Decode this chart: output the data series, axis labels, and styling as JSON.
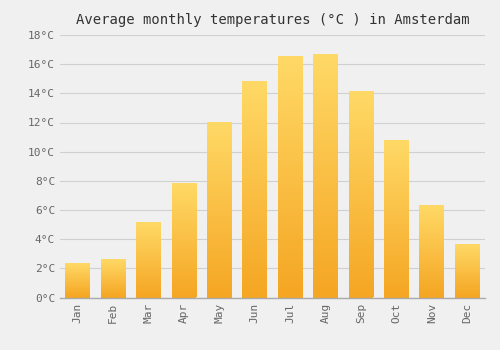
{
  "title": "Average monthly temperatures (°C ) in Amsterdam",
  "months": [
    "Jan",
    "Feb",
    "Mar",
    "Apr",
    "May",
    "Jun",
    "Jul",
    "Aug",
    "Sep",
    "Oct",
    "Nov",
    "Dec"
  ],
  "temperatures": [
    2.3,
    2.6,
    5.1,
    7.8,
    12.0,
    14.8,
    16.5,
    16.6,
    14.1,
    10.7,
    6.3,
    3.6
  ],
  "bar_color_bottom": "#F5A623",
  "bar_color_top": "#FFD966",
  "ylim": [
    0,
    18
  ],
  "yticks": [
    0,
    2,
    4,
    6,
    8,
    10,
    12,
    14,
    16,
    18
  ],
  "ytick_labels": [
    "0°C",
    "2°C",
    "4°C",
    "6°C",
    "8°C",
    "10°C",
    "12°C",
    "14°C",
    "16°C",
    "18°C"
  ],
  "background_color": "#f0f0f0",
  "grid_color": "#d0d0d0",
  "title_fontsize": 10,
  "tick_fontsize": 8,
  "font_family": "monospace",
  "bar_width": 0.7
}
